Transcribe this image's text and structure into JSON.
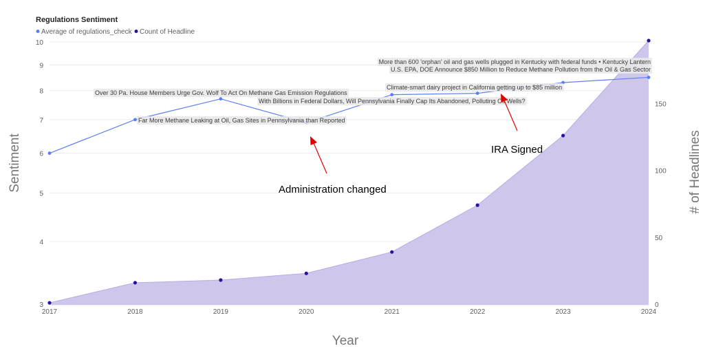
{
  "chart_data": {
    "type": "line",
    "title": "Regulations Sentiment",
    "legend_position": "top-left",
    "grid": true,
    "xlabel": "Year",
    "ylabel": "Sentiment",
    "y2label": "# of Headlines",
    "x": [
      2017,
      2018,
      2019,
      2020,
      2021,
      2022,
      2023,
      2024
    ],
    "x_tick_labels": [
      "2017",
      "2018",
      "2019",
      "2020",
      "2021",
      "2022",
      "2023",
      "2024"
    ],
    "y_ticks": [
      "3",
      "4",
      "5",
      "6",
      "7",
      "8",
      "9",
      "10"
    ],
    "y_scale": "log",
    "ylim": [
      3,
      10
    ],
    "y2_ticks": [
      "0",
      "50",
      "100",
      "150"
    ],
    "y2lim": [
      0,
      197
    ],
    "series": [
      {
        "name": "Average of regulations_check",
        "kind": "line",
        "axis": "left",
        "color": "#5b7ef5",
        "values": [
          6.0,
          7.0,
          7.7,
          6.9,
          7.85,
          7.9,
          8.3,
          8.5
        ]
      },
      {
        "name": "Count of Headline",
        "kind": "area",
        "axis": "right",
        "color": "#2d0f9e",
        "fill_color": "#cfc6ec",
        "values": [
          1,
          16,
          18,
          23,
          39,
          74,
          126,
          197
        ]
      }
    ],
    "headlines": [
      {
        "text": "More than 600 'orphan' oil and gas wells plugged in Kentucky with federal funds • Kentucky Lantern",
        "year": 2024
      },
      {
        "text": "U.S. EPA, DOE Announce $850 Million to Reduce Methane Pollution from the Oil & Gas Sector",
        "year": 2024
      },
      {
        "text": "Over 30 Pa. House Members Urge Gov. Wolf To Act On Methane Gas Emission Regulations",
        "year": 2019
      },
      {
        "text": "Climate-smart dairy project in California getting up to $85 million",
        "year": 2022
      },
      {
        "text": "With Billions in Federal Dollars, Will Pennsylvania Finally Cap Its Abandoned, Polluting Oil Wells?",
        "year": 2021
      },
      {
        "text": "Far More Methane Leaking at Oil, Gas Sites in Pennsylvania than Reported",
        "year": 2018
      }
    ],
    "annotations": [
      {
        "text": "IRA Signed",
        "year": 2022
      },
      {
        "text": "Administration changed",
        "year": 2020
      }
    ]
  }
}
